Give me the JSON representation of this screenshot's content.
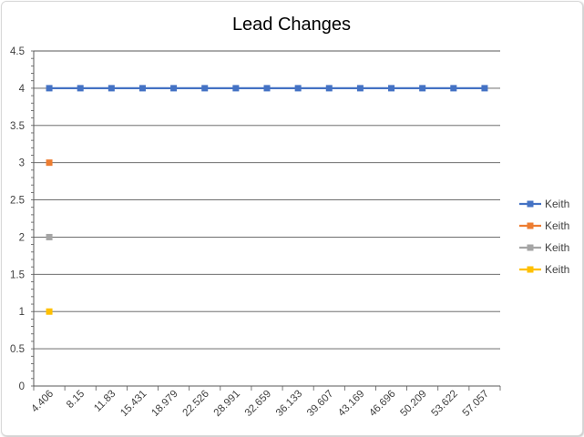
{
  "chart_data": {
    "type": "line",
    "title": "Lead Changes",
    "xlabel": "",
    "ylabel": "",
    "ylim": [
      0,
      4.5
    ],
    "y_ticks": [
      "0",
      "0.5",
      "1",
      "1.5",
      "2",
      "2.5",
      "3",
      "3.5",
      "4",
      "4.5"
    ],
    "categories": [
      "4.406",
      "8.15",
      "11.83",
      "15.431",
      "18.979",
      "22.526",
      "28.991",
      "32.659",
      "36.133",
      "39.607",
      "43.169",
      "46.696",
      "50.209",
      "53.622",
      "57.057"
    ],
    "grid": true,
    "legend_position": "right",
    "series": [
      {
        "name": "Keith",
        "color": "#4472C4",
        "values": [
          4,
          4,
          4,
          4,
          4,
          4,
          4,
          4,
          4,
          4,
          4,
          4,
          4,
          4,
          4
        ]
      },
      {
        "name": "Keith",
        "color": "#ED7D31",
        "values": [
          3,
          null,
          null,
          null,
          null,
          null,
          null,
          null,
          null,
          null,
          null,
          null,
          null,
          null,
          null
        ]
      },
      {
        "name": "Keith",
        "color": "#A5A5A5",
        "values": [
          2,
          null,
          null,
          null,
          null,
          null,
          null,
          null,
          null,
          null,
          null,
          null,
          null,
          null,
          null
        ]
      },
      {
        "name": "Keith",
        "color": "#FFC000",
        "values": [
          1,
          null,
          null,
          null,
          null,
          null,
          null,
          null,
          null,
          null,
          null,
          null,
          null,
          null,
          null
        ]
      }
    ]
  }
}
